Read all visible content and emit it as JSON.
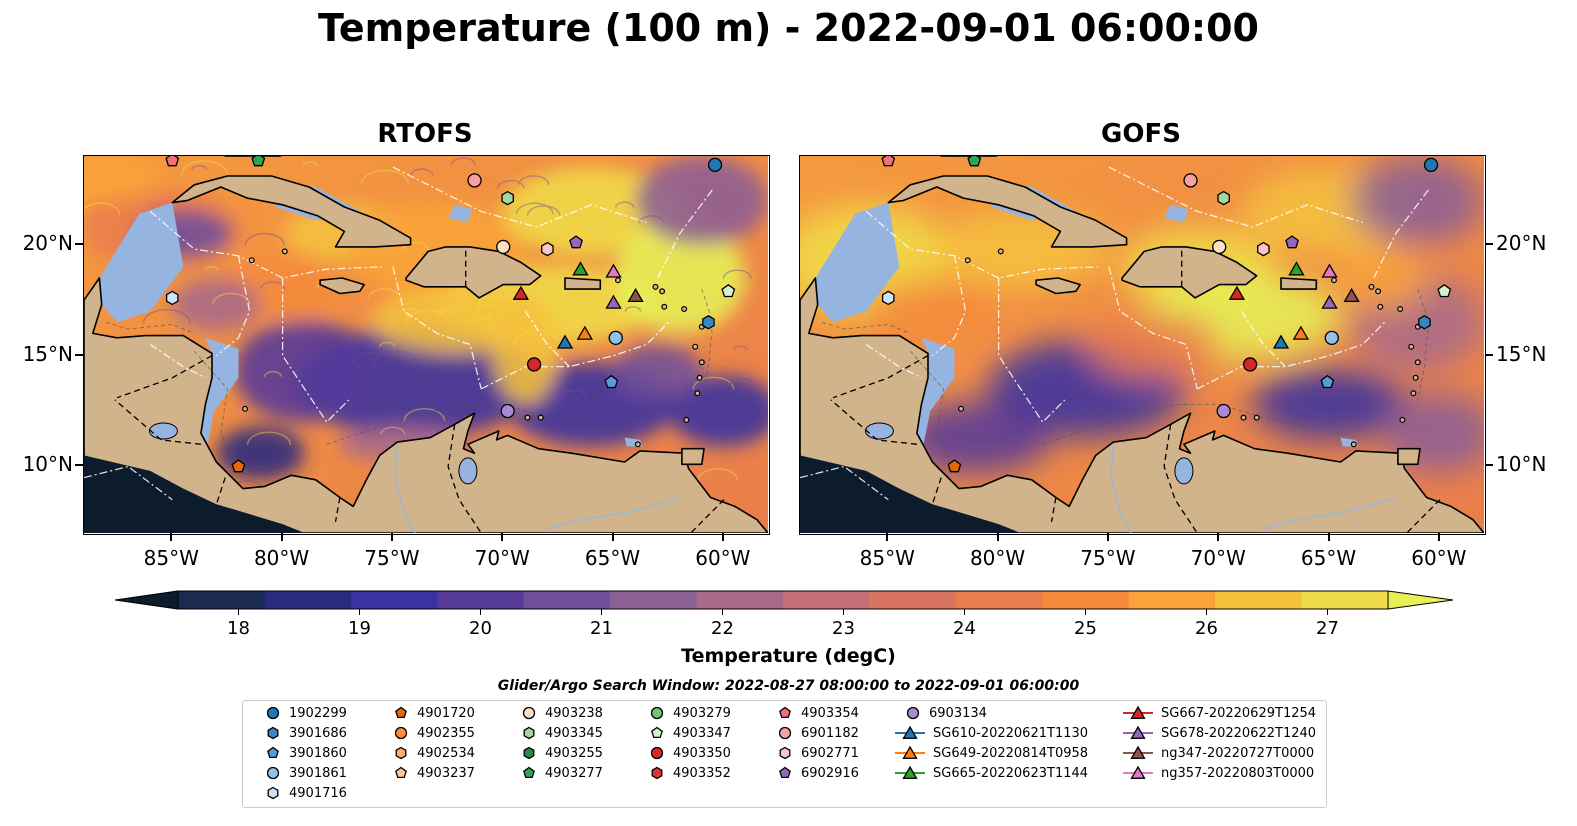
{
  "title": "Temperature (100 m) - 2022-09-01 06:00:00",
  "panels": [
    {
      "title": "RTOFS"
    },
    {
      "title": "GOFS"
    }
  ],
  "lon_ticks": [
    "85°W",
    "80°W",
    "75°W",
    "70°W",
    "65°W",
    "60°W"
  ],
  "lat_ticks": [
    "20°N",
    "15°N",
    "10°N"
  ],
  "map_extent": {
    "lon": [
      -89,
      -58
    ],
    "lat": [
      7,
      24
    ]
  },
  "colorbar": {
    "label": "Temperature (degC)",
    "ticks": [
      "18",
      "19",
      "20",
      "21",
      "22",
      "23",
      "24",
      "25",
      "26",
      "27"
    ],
    "range": [
      17.5,
      27.5
    ],
    "colors": [
      "#0c1c2c",
      "#1a2a50",
      "#2a2a80",
      "#3a32a0",
      "#553a9a",
      "#70509a",
      "#8c5f95",
      "#a86a8a",
      "#c46f78",
      "#d97463",
      "#ea7d4b",
      "#f58a3c",
      "#f9a33a",
      "#f5c23e",
      "#f0dc48",
      "#e6f056"
    ]
  },
  "legend": {
    "title": "Glider/Argo Search Window: 2022-08-27 08:00:00 to 2022-09-01 06:00:00",
    "items": [
      {
        "label": "1902299",
        "marker": "circle",
        "color": "#1f77b4"
      },
      {
        "label": "3901686",
        "marker": "hexagon",
        "color": "#3a85c4"
      },
      {
        "label": "3901860",
        "marker": "pentagon",
        "color": "#5a9ad6"
      },
      {
        "label": "3901861",
        "marker": "circle",
        "color": "#8ec2ea"
      },
      {
        "label": "4901716",
        "marker": "hexagon",
        "color": "#cce4f8"
      },
      {
        "label": "4901720",
        "marker": "pentagon",
        "color": "#e6660a"
      },
      {
        "label": "4902355",
        "marker": "circle",
        "color": "#fd8d3c"
      },
      {
        "label": "4902534",
        "marker": "hexagon",
        "color": "#fdae6b"
      },
      {
        "label": "4903237",
        "marker": "pentagon",
        "color": "#fdc896"
      },
      {
        "label": "4903238",
        "marker": "circle",
        "color": "#fde0c5"
      },
      {
        "label": "4903345",
        "marker": "hexagon",
        "color": "#a1d99b"
      },
      {
        "label": "4903255",
        "marker": "hexagon",
        "color": "#238b45"
      },
      {
        "label": "4903277",
        "marker": "pentagon",
        "color": "#31a354"
      },
      {
        "label": "4903279",
        "marker": "circle",
        "color": "#74c476"
      },
      {
        "label": "4903347",
        "marker": "pentagon",
        "color": "#d4f0cc"
      },
      {
        "label": "4903350",
        "marker": "circle",
        "color": "#d62728"
      },
      {
        "label": "4903352",
        "marker": "hexagon",
        "color": "#e0303a"
      },
      {
        "label": "4903354",
        "marker": "pentagon",
        "color": "#f07078"
      },
      {
        "label": "6901182",
        "marker": "circle",
        "color": "#f7a0a0"
      },
      {
        "label": "6902771",
        "marker": "hexagon",
        "color": "#fcc5c5"
      },
      {
        "label": "6902916",
        "marker": "pentagon",
        "color": "#9467bd"
      },
      {
        "label": "6903134",
        "marker": "circle",
        "color": "#a98bd4"
      },
      {
        "label": "SG610-20220621T1130",
        "marker": "triangle-line",
        "color": "#1f77b4"
      },
      {
        "label": "SG649-20220814T0958",
        "marker": "triangle-line",
        "color": "#ff7f0e"
      },
      {
        "label": "SG665-20220623T1144",
        "marker": "triangle-line",
        "color": "#2ca02c"
      },
      {
        "label": "SG667-20220629T1254",
        "marker": "triangle-line",
        "color": "#d62728"
      },
      {
        "label": "SG678-20220622T1240",
        "marker": "triangle-line",
        "color": "#9467bd"
      },
      {
        "label": "ng347-20220727T0000",
        "marker": "triangle-line",
        "color": "#8c564b"
      },
      {
        "label": "ng357-20220803T0000",
        "marker": "triangle-line",
        "color": "#e377c2"
      }
    ]
  },
  "stations": [
    {
      "lon": -60.4,
      "lat": 23.6,
      "marker": "circle",
      "color": "#1f77b4"
    },
    {
      "lon": -60.7,
      "lat": 16.5,
      "marker": "hexagon",
      "color": "#3a85c4"
    },
    {
      "lon": -65.1,
      "lat": 13.8,
      "marker": "pentagon",
      "color": "#5a9ad6"
    },
    {
      "lon": -64.9,
      "lat": 15.8,
      "marker": "circle",
      "color": "#8ec2ea"
    },
    {
      "lon": -85.0,
      "lat": 17.6,
      "marker": "hexagon",
      "color": "#cce4f8"
    },
    {
      "lon": -82.0,
      "lat": 10.0,
      "marker": "pentagon",
      "color": "#e6660a"
    },
    {
      "lon": -70.0,
      "lat": 19.9,
      "marker": "circle",
      "color": "#fde0c5"
    },
    {
      "lon": -71.3,
      "lat": 22.9,
      "marker": "circle",
      "color": "#f7a0a0"
    },
    {
      "lon": -68.0,
      "lat": 19.8,
      "marker": "hexagon",
      "color": "#fcc5c5"
    },
    {
      "lon": -69.8,
      "lat": 22.1,
      "marker": "hexagon",
      "color": "#a1d99b"
    },
    {
      "lon": -66.7,
      "lat": 20.1,
      "marker": "pentagon",
      "color": "#9467bd"
    },
    {
      "lon": -59.8,
      "lat": 17.9,
      "marker": "pentagon",
      "color": "#d4f0cc"
    },
    {
      "lon": -68.6,
      "lat": 14.6,
      "marker": "circle",
      "color": "#d62728"
    },
    {
      "lon": -69.8,
      "lat": 12.5,
      "marker": "circle",
      "color": "#a98bd4"
    },
    {
      "lon": -81.1,
      "lat": 23.8,
      "marker": "pentagon",
      "color": "#31a354"
    },
    {
      "lon": -85.0,
      "lat": 23.8,
      "marker": "pentagon",
      "color": "#f07078"
    },
    {
      "lon": -67.2,
      "lat": 15.6,
      "marker": "triangle",
      "color": "#1f77b4"
    },
    {
      "lon": -66.3,
      "lat": 16.0,
      "marker": "triangle",
      "color": "#ff7f0e"
    },
    {
      "lon": -66.5,
      "lat": 18.9,
      "marker": "triangle",
      "color": "#2ca02c"
    },
    {
      "lon": -69.2,
      "lat": 17.8,
      "marker": "triangle",
      "color": "#d62728"
    },
    {
      "lon": -65.0,
      "lat": 17.4,
      "marker": "triangle",
      "color": "#9467bd"
    },
    {
      "lon": -64.0,
      "lat": 17.7,
      "marker": "triangle",
      "color": "#8c564b"
    },
    {
      "lon": -65.0,
      "lat": 18.8,
      "marker": "triangle",
      "color": "#e377c2"
    }
  ]
}
